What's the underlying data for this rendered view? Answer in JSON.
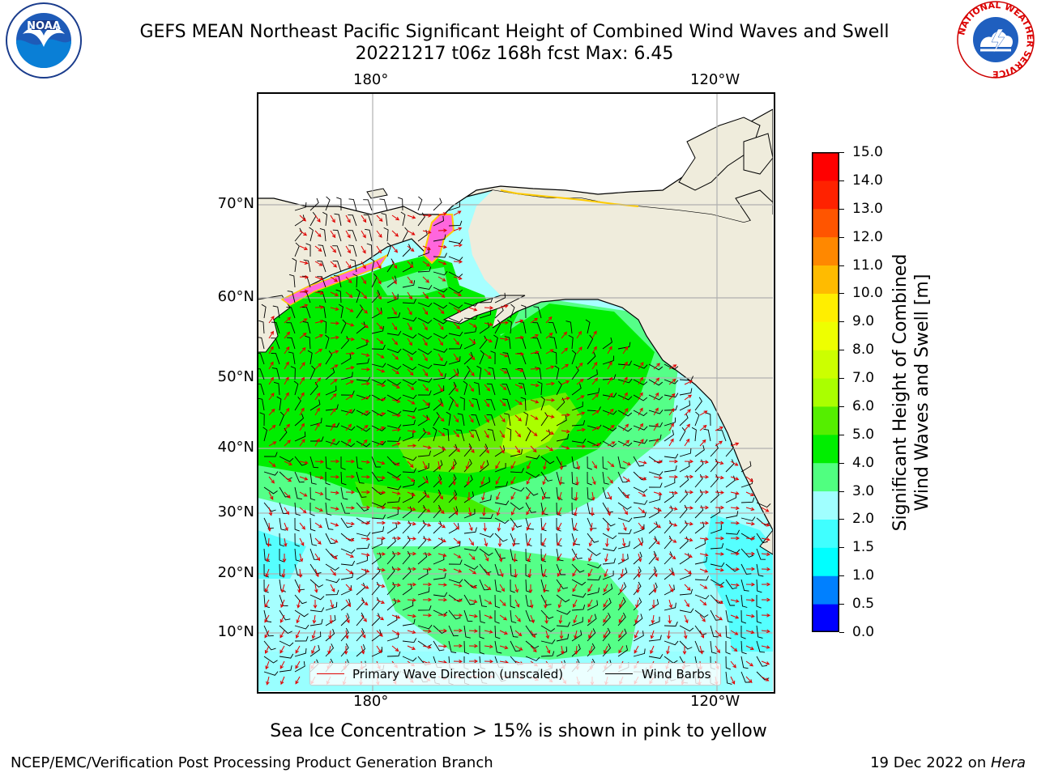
{
  "title": {
    "line1": "GEFS MEAN Northeast Pacific Significant Height of Combined Wind Waves and Swell",
    "line2": "20221217 t06z 168h fcst   Max: 6.45"
  },
  "logos": {
    "left": {
      "name": "NOAA",
      "icon": "noaa-logo"
    },
    "right": {
      "name": "NATIONAL WEATHER SERVICE",
      "icon": "nws-logo"
    }
  },
  "map": {
    "lon_labels_top": [
      "180°",
      "120°W"
    ],
    "lon_labels_bottom": [
      "180°",
      "120°W"
    ],
    "lat_labels": [
      "70°N",
      "60°N",
      "50°N",
      "40°N",
      "30°N",
      "20°N",
      "10°N"
    ],
    "land_color": "#efecdc",
    "gridlines": true,
    "legend": {
      "placement": "lower-center",
      "entries": [
        {
          "label": "Primary Wave Direction (unscaled)",
          "color": "#e00000"
        },
        {
          "label": "Wind Barbs",
          "color": "#000000"
        }
      ]
    }
  },
  "colorbar": {
    "label_line1": "Significant Height of Combined",
    "label_line2": "Wind Waves and Swell [m]",
    "ticks": [
      "0.0",
      "0.5",
      "1.0",
      "1.5",
      "2.0",
      "3.0",
      "4.0",
      "5.0",
      "6.0",
      "7.0",
      "8.0",
      "9.0",
      "10.0",
      "11.0",
      "12.0",
      "13.0",
      "14.0",
      "15.0"
    ],
    "colors": [
      "#0000ff",
      "#0080ff",
      "#00ffff",
      "#40ffff",
      "#a0ffff",
      "#50ff80",
      "#00ee00",
      "#55ee00",
      "#aaff00",
      "#ccff00",
      "#eeff00",
      "#ffee00",
      "#ffbb00",
      "#ff8800",
      "#ff5500",
      "#ff2200",
      "#ff0000"
    ]
  },
  "note": "Sea Ice Concentration > 15% is shown in pink to yellow",
  "footer": {
    "left": "NCEP/EMC/Verification Post Processing Product Generation Branch",
    "right_date": "19 Dec 2022 on ",
    "right_host": "Hera"
  }
}
